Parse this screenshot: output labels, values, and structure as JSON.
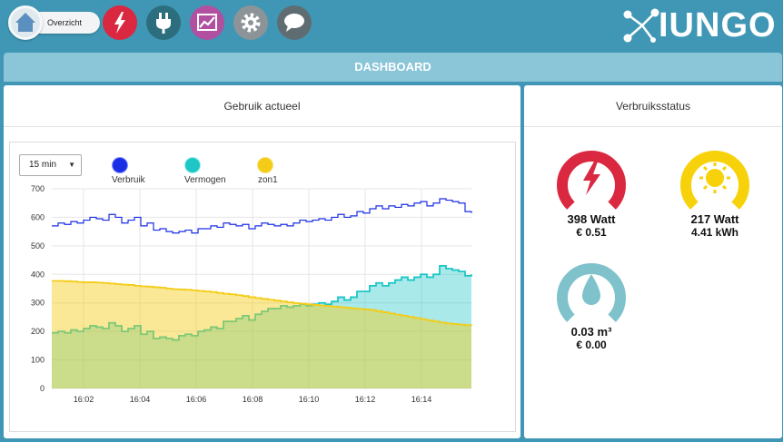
{
  "nav": {
    "overzicht_label": "Overzicht",
    "icons": [
      {
        "name": "energy-icon",
        "color": "#d9283f"
      },
      {
        "name": "plug-icon",
        "color": "#2c6e7e"
      },
      {
        "name": "chart-icon",
        "color": "#b14fa0"
      },
      {
        "name": "gear-icon",
        "color": "#8d9498"
      },
      {
        "name": "chat-icon",
        "color": "#5f6d73"
      }
    ],
    "logo_text": "IUNGO"
  },
  "header": {
    "title": "DASHBOARD"
  },
  "usage": {
    "title": "Gebruik actueel",
    "range_value": "15 min",
    "legend": [
      {
        "label": "Verbruik",
        "color": "#1a2ee6"
      },
      {
        "label": "Vermogen",
        "color": "#1ec6c6"
      },
      {
        "label": "zon1",
        "color": "#f4cc17"
      }
    ]
  },
  "chart_data": {
    "type": "area",
    "ylim": [
      0,
      700
    ],
    "yticks": [
      "0",
      "100",
      "200",
      "300",
      "400",
      "500",
      "600",
      "700"
    ],
    "xticks": [
      "16:02",
      "16:04",
      "16:06",
      "16:08",
      "16:10",
      "16:12",
      "16:14"
    ],
    "series": [
      {
        "name": "Verbruik",
        "color": "#1a2ee6",
        "values": [
          570,
          580,
          575,
          585,
          580,
          590,
          600,
          595,
          590,
          610,
          600,
          580,
          590,
          600,
          570,
          580,
          555,
          560,
          550,
          545,
          550,
          555,
          545,
          560,
          560,
          570,
          565,
          580,
          575,
          570,
          575,
          560,
          570,
          580,
          575,
          570,
          575,
          570,
          580,
          590,
          585,
          590,
          595,
          590,
          600,
          610,
          600,
          605,
          620,
          615,
          630,
          640,
          630,
          640,
          635,
          645,
          640,
          650,
          655,
          640,
          650,
          665,
          660,
          655,
          650,
          620,
          615
        ]
      },
      {
        "name": "Vermogen",
        "color": "#1ec6c6",
        "values": [
          195,
          200,
          195,
          205,
          200,
          210,
          220,
          215,
          210,
          230,
          220,
          200,
          210,
          220,
          190,
          200,
          175,
          180,
          175,
          170,
          185,
          190,
          185,
          200,
          205,
          215,
          210,
          235,
          235,
          245,
          255,
          240,
          260,
          270,
          280,
          280,
          290,
          285,
          290,
          295,
          290,
          295,
          300,
          295,
          305,
          320,
          310,
          320,
          340,
          340,
          360,
          370,
          360,
          370,
          380,
          390,
          380,
          390,
          400,
          390,
          400,
          430,
          420,
          415,
          410,
          395,
          400
        ]
      },
      {
        "name": "zon1",
        "color": "#f4cc17",
        "values": [
          377,
          377,
          376,
          375,
          373,
          372,
          372,
          371,
          370,
          368,
          366,
          364,
          363,
          360,
          358,
          357,
          355,
          353,
          350,
          348,
          347,
          346,
          344,
          342,
          340,
          338,
          335,
          332,
          330,
          327,
          324,
          320,
          317,
          314,
          311,
          308,
          305,
          302,
          299,
          297,
          295,
          293,
          291,
          289,
          287,
          285,
          283,
          281,
          279,
          277,
          275,
          271,
          267,
          263,
          259,
          255,
          251,
          247,
          243,
          239,
          235,
          231,
          228,
          226,
          224,
          222,
          220
        ]
      }
    ]
  },
  "status": {
    "title": "Verbruiksstatus",
    "items": [
      {
        "name": "electricity",
        "icon": "lightning-icon",
        "color": "#d9283f",
        "main": "398 Watt",
        "sub": "€ 0.51"
      },
      {
        "name": "solar",
        "icon": "sun-icon",
        "color": "#f7d20a",
        "main": "217 Watt",
        "sub": "4.41 kWh"
      },
      {
        "name": "water",
        "icon": "drop-icon",
        "color": "#7fc2cc",
        "main": "0.03 m³",
        "sub": "€ 0.00"
      }
    ]
  }
}
